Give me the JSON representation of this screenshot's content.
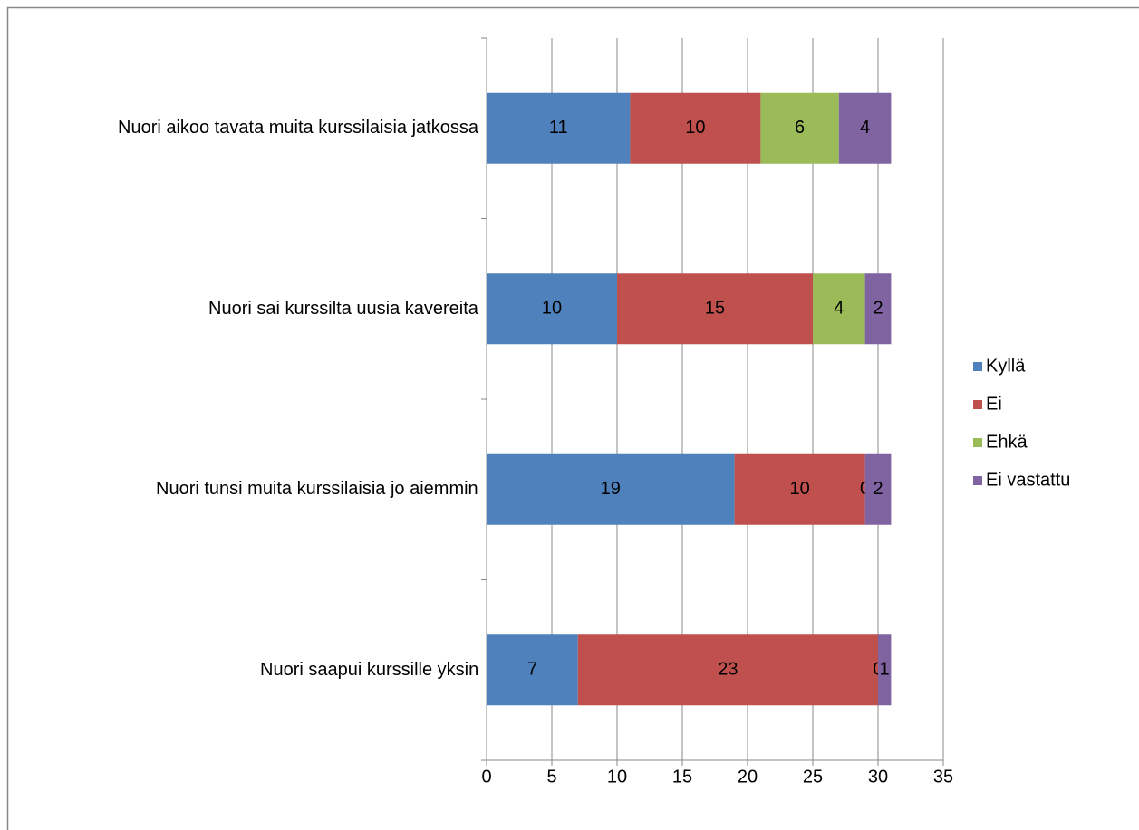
{
  "chart_data": {
    "type": "stacked_bar_horizontal",
    "categories": [
      "Nuori aikoo tavata muita kurssilaisia jatkossa",
      "Nuori sai kurssilta uusia kavereita",
      "Nuori tunsi muita kurssilaisia jo aiemmin",
      "Nuori saapui kurssille yksin"
    ],
    "series": [
      {
        "name": "Kyllä",
        "color": "#4f81bd",
        "values": [
          11,
          10,
          19,
          7
        ]
      },
      {
        "name": "Ei",
        "color": "#c0504d",
        "values": [
          10,
          15,
          10,
          23
        ]
      },
      {
        "name": "Ehkä",
        "color": "#9bbb59",
        "values": [
          6,
          4,
          0,
          0
        ]
      },
      {
        "name": "Ei vastattu",
        "color": "#8064a2",
        "values": [
          4,
          2,
          2,
          1
        ]
      }
    ],
    "xlim": [
      0,
      35
    ],
    "xticks": [
      0,
      5,
      10,
      15,
      20,
      25,
      30,
      35
    ],
    "grid": true,
    "legend": "right"
  }
}
